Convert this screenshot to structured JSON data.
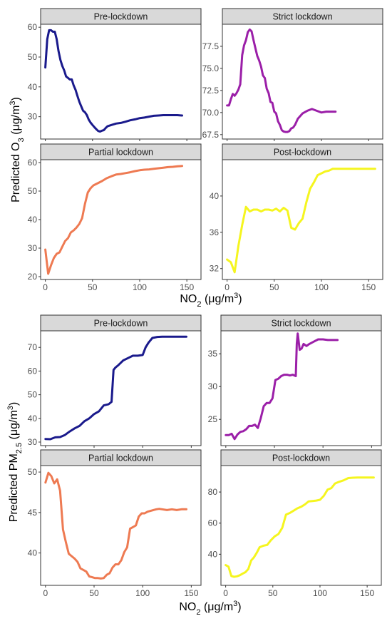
{
  "figure": {
    "top": {
      "ylabel": "Predicted O3 (μg/m3)",
      "xlabel": "NO2 (μg/m3)"
    },
    "bottom": {
      "ylabel": "Predicted PM2.5 (μg/m3)",
      "xlabel": "NO2 (μg/m3)"
    }
  },
  "colors": {
    "pre": "#1a1a8c",
    "strict": "#9b1fa8",
    "partial": "#ee7a52",
    "post": "#f5f51f",
    "strip_fill": "#d9d9d9"
  },
  "chart_data": [
    {
      "type": "line",
      "title": "Pre-lockdown",
      "color": "#1a1a8c",
      "xlim": [
        -5,
        165
      ],
      "ylim": [
        22.5,
        61
      ],
      "xticks": [
        0,
        50,
        100,
        150
      ],
      "yticks": [
        30,
        40,
        50,
        60
      ],
      "x": [
        0,
        2,
        4,
        6,
        8,
        10,
        12,
        14,
        16,
        18,
        20,
        22,
        24,
        26,
        28,
        30,
        32,
        34,
        36,
        38,
        40,
        42,
        44,
        46,
        48,
        50,
        52,
        54,
        56,
        58,
        60,
        62,
        64,
        66,
        68,
        70,
        75,
        80,
        85,
        90,
        95,
        100,
        105,
        110,
        115,
        120,
        125,
        130,
        135,
        140,
        145
      ],
      "y": [
        46.5,
        56,
        59,
        59,
        58.5,
        58.5,
        56,
        52,
        49,
        47,
        45.5,
        43.5,
        43,
        42.5,
        42.5,
        40.5,
        39,
        37,
        35,
        33.5,
        32,
        31.5,
        30.5,
        29,
        28,
        27.2,
        26.5,
        25.8,
        25.2,
        25,
        25.3,
        25.5,
        26.2,
        26.8,
        27,
        27.2,
        27.7,
        27.9,
        28.3,
        28.8,
        29.1,
        29.5,
        29.7,
        30,
        30.3,
        30.4,
        30.5,
        30.5,
        30.5,
        30.5,
        30.4
      ]
    },
    {
      "type": "line",
      "title": "Strict lockdown",
      "color": "#9b1fa8",
      "xlim": [
        -5,
        165
      ],
      "ylim": [
        67,
        80
      ],
      "xticks": [
        0,
        50,
        100,
        150
      ],
      "yticks": [
        67.5,
        70.0,
        72.5,
        75.0,
        77.5
      ],
      "x": [
        0,
        2,
        4,
        6,
        8,
        10,
        12,
        14,
        16,
        18,
        20,
        22,
        24,
        26,
        28,
        30,
        32,
        34,
        36,
        38,
        40,
        42,
        44,
        46,
        48,
        50,
        52,
        54,
        56,
        58,
        60,
        62,
        64,
        66,
        68,
        70,
        72,
        75,
        80,
        85,
        90,
        95,
        100,
        105,
        110,
        115
      ],
      "y": [
        70.8,
        70.8,
        71.5,
        72.1,
        71.9,
        72.2,
        72.6,
        73.2,
        76.5,
        77.6,
        78.2,
        79.1,
        79.4,
        79.2,
        78.2,
        77.3,
        76.4,
        75.9,
        75.2,
        74.2,
        73.9,
        72.7,
        72.2,
        71.2,
        71.1,
        70.1,
        69.9,
        69.0,
        68.6,
        68.0,
        67.85,
        67.8,
        67.8,
        67.9,
        68.2,
        68.3,
        68.6,
        69.3,
        69.9,
        70.2,
        70.4,
        70.2,
        70.0,
        70.1,
        70.1,
        70.1
      ]
    },
    {
      "type": "line",
      "title": "Partial lockdown",
      "color": "#ee7a52",
      "xlim": [
        -5,
        165
      ],
      "ylim": [
        19,
        61
      ],
      "xticks": [
        0,
        50,
        100,
        150
      ],
      "yticks": [
        20,
        30,
        40,
        50,
        60
      ],
      "x": [
        0,
        3,
        6,
        9,
        12,
        15,
        18,
        21,
        24,
        27,
        30,
        33,
        36,
        39,
        42,
        45,
        48,
        51,
        54,
        57,
        60,
        65,
        70,
        75,
        80,
        85,
        90,
        95,
        100,
        105,
        110,
        115,
        120,
        125,
        130,
        135,
        140,
        145
      ],
      "y": [
        29.5,
        21,
        24,
        26.5,
        28,
        28.5,
        30.5,
        32.5,
        33.5,
        35.5,
        36.2,
        37.2,
        38.5,
        40.5,
        45.5,
        49.5,
        51,
        52,
        52.5,
        53,
        53.5,
        54.5,
        55.2,
        55.8,
        56,
        56.3,
        56.6,
        57,
        57.3,
        57.5,
        57.6,
        57.8,
        58,
        58.2,
        58.4,
        58.5,
        58.7,
        58.8
      ]
    },
    {
      "type": "line",
      "title": "Post-lockdown",
      "color": "#f5f51f",
      "xlim": [
        -5,
        165
      ],
      "ylim": [
        30.8,
        44
      ],
      "xticks": [
        0,
        50,
        100,
        150
      ],
      "yticks": [
        32,
        36,
        40
      ],
      "x": [
        0,
        4,
        8,
        12,
        16,
        20,
        24,
        28,
        32,
        36,
        40,
        44,
        48,
        52,
        56,
        60,
        64,
        68,
        72,
        76,
        80,
        84,
        88,
        92,
        96,
        100,
        104,
        108,
        112,
        116,
        120,
        125,
        130,
        140,
        150,
        157
      ],
      "y": [
        33,
        32.7,
        31.6,
        34.5,
        36.8,
        38.8,
        38.3,
        38.5,
        38.5,
        38.3,
        38.5,
        38.5,
        38.4,
        38.6,
        38.3,
        38.7,
        38.4,
        36.5,
        36.3,
        37,
        37.5,
        39.3,
        40.8,
        41.5,
        42.3,
        42.5,
        42.7,
        42.8,
        43.0,
        43.0,
        43.0,
        43.0,
        43.0,
        43.0,
        43.0,
        43.0
      ]
    },
    {
      "type": "line",
      "title": "Pre-lockdown",
      "color": "#1a1a8c",
      "xlim": [
        -5,
        160
      ],
      "ylim": [
        28.5,
        77
      ],
      "xticks": [
        0,
        50,
        100,
        150
      ],
      "yticks": [
        30,
        40,
        50,
        60,
        70
      ],
      "x": [
        0,
        5,
        10,
        15,
        20,
        25,
        30,
        35,
        40,
        45,
        50,
        55,
        60,
        65,
        68,
        70,
        72,
        75,
        80,
        85,
        90,
        95,
        100,
        103,
        106,
        110,
        115,
        120,
        130,
        140,
        145
      ],
      "y": [
        31.3,
        31.2,
        32,
        32.1,
        33,
        34.5,
        35.8,
        36.8,
        38.8,
        40,
        41.8,
        43,
        45.5,
        46,
        47,
        60.5,
        61.5,
        62.5,
        64.5,
        65.5,
        66.5,
        66.5,
        66.8,
        70,
        72,
        74,
        74.4,
        74.5,
        74.5,
        74.5,
        74.5
      ]
    },
    {
      "type": "line",
      "title": "Strict lockdown",
      "color": "#9b1fa8",
      "xlim": [
        -5,
        160
      ],
      "ylim": [
        21,
        38.5
      ],
      "xticks": [
        0,
        50,
        100,
        150
      ],
      "yticks": [
        25,
        30,
        35
      ],
      "x": [
        0,
        3,
        6,
        9,
        12,
        15,
        18,
        21,
        24,
        27,
        30,
        33,
        36,
        39,
        42,
        45,
        48,
        51,
        54,
        57,
        60,
        63,
        66,
        69,
        72,
        73,
        74,
        76,
        78,
        80,
        83,
        86,
        90,
        95,
        100,
        105,
        110,
        115
      ],
      "y": [
        22.6,
        22.6,
        22.8,
        22.0,
        22.7,
        23.1,
        23.2,
        23.5,
        24.0,
        24.0,
        24.2,
        23.7,
        25.2,
        27.0,
        27.5,
        27.5,
        28.2,
        31.0,
        31.2,
        31.6,
        31.8,
        31.8,
        31.7,
        31.8,
        31.6,
        36.5,
        38.1,
        35.6,
        35.8,
        36.5,
        36.2,
        36.5,
        36.8,
        37.2,
        37.2,
        37.1,
        37.1,
        37.1
      ]
    },
    {
      "type": "line",
      "title": "Partial lockdown",
      "color": "#ee7a52",
      "xlim": [
        -5,
        160
      ],
      "ylim": [
        36,
        50.8
      ],
      "xticks": [
        0,
        50,
        100,
        150
      ],
      "yticks": [
        40,
        45,
        50
      ],
      "x": [
        0,
        3,
        6,
        9,
        12,
        15,
        18,
        21,
        24,
        27,
        30,
        33,
        36,
        39,
        42,
        45,
        48,
        51,
        54,
        57,
        60,
        63,
        66,
        69,
        72,
        75,
        78,
        81,
        84,
        87,
        90,
        93,
        96,
        99,
        102,
        105,
        108,
        111,
        114,
        117,
        120,
        125,
        130,
        135,
        140,
        145
      ],
      "y": [
        48.7,
        49.9,
        49.5,
        48.6,
        49.1,
        47.7,
        42.9,
        41.3,
        39.9,
        39.6,
        39.3,
        38.9,
        38.1,
        37.9,
        37.7,
        37.1,
        37.0,
        36.9,
        36.9,
        36.85,
        36.9,
        37.3,
        37.5,
        38.2,
        38.6,
        38.6,
        39.1,
        40.1,
        40.7,
        43.0,
        43.2,
        43.4,
        44.5,
        44.9,
        44.9,
        45.1,
        45.2,
        45.3,
        45.4,
        45.45,
        45.4,
        45.3,
        45.4,
        45.3,
        45.4,
        45.4
      ]
    },
    {
      "type": "line",
      "title": "Post-lockdown",
      "color": "#f5f51f",
      "xlim": [
        -5,
        165
      ],
      "ylim": [
        20,
        97
      ],
      "xticks": [
        0,
        50,
        100,
        150
      ],
      "yticks": [
        40,
        60,
        80
      ],
      "x": [
        0,
        3,
        6,
        9,
        12,
        15,
        18,
        21,
        24,
        27,
        30,
        33,
        36,
        40,
        44,
        48,
        52,
        56,
        60,
        64,
        68,
        72,
        76,
        80,
        84,
        88,
        92,
        96,
        100,
        104,
        108,
        112,
        116,
        120,
        125,
        130,
        135,
        140,
        145,
        150,
        157
      ],
      "y": [
        33,
        32,
        26,
        25.5,
        25.8,
        26.5,
        27.5,
        28.5,
        30.5,
        36,
        38,
        41,
        44.5,
        45.5,
        46,
        49,
        51.5,
        53,
        57,
        65.5,
        66.5,
        68,
        69.5,
        70.5,
        72,
        74,
        74.2,
        74.5,
        75,
        77.5,
        81.5,
        82.5,
        85.5,
        86.5,
        87.5,
        89,
        89.2,
        89.3,
        89.3,
        89.3,
        89.3
      ]
    }
  ]
}
